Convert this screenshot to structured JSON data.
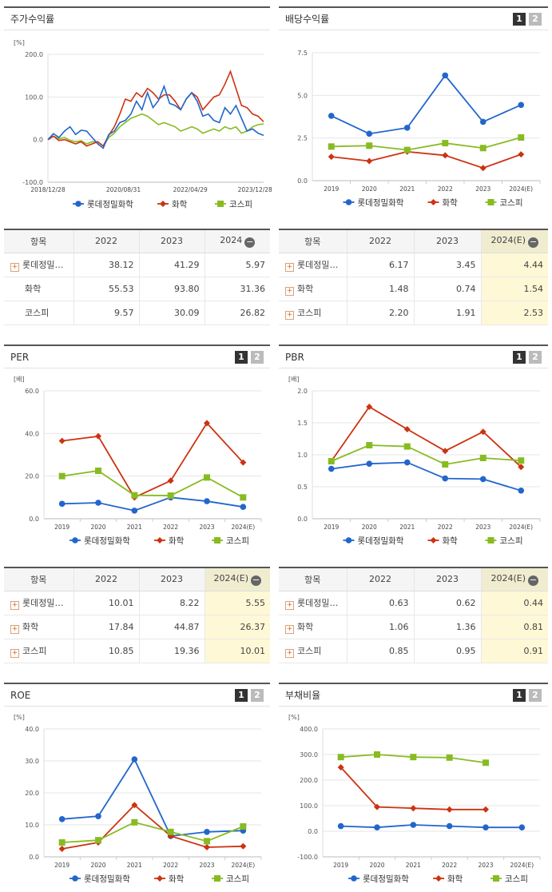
{
  "series_names": [
    "롯데정밀화학",
    "화학",
    "코스피"
  ],
  "colors": {
    "s0": "#2266cc",
    "s1": "#cc3311",
    "s2": "#88bb22"
  },
  "panels": {
    "price": {
      "title": "주가수익률",
      "unit": "[%]"
    },
    "dividend": {
      "title": "배당수익률",
      "unit": "",
      "pages": [
        "1",
        "2"
      ]
    },
    "per": {
      "title": "PER",
      "unit": "[배]",
      "pages": [
        "1",
        "2"
      ]
    },
    "pbr": {
      "title": "PBR",
      "unit": "[배]",
      "pages": [
        "1",
        "2"
      ]
    },
    "roe": {
      "title": "ROE",
      "unit": "[%]",
      "pages": [
        "1",
        "2"
      ]
    },
    "debt": {
      "title": "부채비율",
      "unit": "[%]",
      "pages": [
        "1",
        "2"
      ]
    }
  },
  "chart_data": [
    {
      "id": "price",
      "type": "line",
      "title": "주가수익률",
      "ylabel": "[%]",
      "ylim": [
        -100,
        200
      ],
      "yticks": [
        "200.0",
        "100.0",
        "0.0",
        "-100.0"
      ],
      "xticks": [
        "2018/12/28",
        "2020/08/31",
        "2022/04/29",
        "2023/12/28"
      ],
      "x_range": [
        "2018/12/28",
        "2024/05"
      ],
      "series": [
        {
          "name": "롯데정밀화학",
          "values": [
            0,
            14,
            5,
            20,
            30,
            12,
            22,
            20,
            5,
            -10,
            -20,
            12,
            20,
            40,
            45,
            60,
            90,
            70,
            110,
            75,
            92,
            125,
            85,
            80,
            70,
            95,
            110,
            90,
            55,
            60,
            45,
            40,
            75,
            60,
            80,
            50,
            20,
            25,
            15,
            10
          ]
        },
        {
          "name": "화학",
          "values": [
            0,
            8,
            -2,
            0,
            -5,
            -10,
            -5,
            -15,
            -10,
            -5,
            -15,
            10,
            30,
            60,
            95,
            90,
            110,
            100,
            120,
            110,
            95,
            105,
            105,
            90,
            70,
            95,
            110,
            100,
            70,
            85,
            100,
            105,
            130,
            160,
            120,
            80,
            75,
            60,
            55,
            42
          ]
        },
        {
          "name": "코스피",
          "values": [
            0,
            8,
            2,
            5,
            -2,
            -5,
            -3,
            -10,
            -5,
            -5,
            -15,
            5,
            15,
            30,
            40,
            50,
            55,
            60,
            55,
            45,
            35,
            40,
            35,
            30,
            20,
            25,
            30,
            25,
            15,
            20,
            25,
            20,
            30,
            25,
            30,
            15,
            20,
            30,
            35,
            37
          ]
        }
      ]
    },
    {
      "id": "dividend",
      "type": "line",
      "title": "배당수익률",
      "ylim": [
        0,
        7.5
      ],
      "yticks": [
        "7.5",
        "5.0",
        "2.5",
        "0.0"
      ],
      "categories": [
        "2019",
        "2020",
        "2021",
        "2022",
        "2023",
        "2024(E)"
      ],
      "series": [
        {
          "name": "롯데정밀화학",
          "values": [
            3.8,
            2.75,
            3.1,
            6.17,
            3.45,
            4.44
          ]
        },
        {
          "name": "화학",
          "values": [
            1.4,
            1.15,
            1.7,
            1.48,
            0.74,
            1.54
          ]
        },
        {
          "name": "코스피",
          "values": [
            2.0,
            2.05,
            1.8,
            2.2,
            1.91,
            2.53
          ]
        }
      ]
    },
    {
      "id": "per",
      "type": "line",
      "title": "PER",
      "ylabel": "[배]",
      "ylim": [
        0,
        60
      ],
      "yticks": [
        "60.0",
        "40.0",
        "20.0",
        "0.0"
      ],
      "categories": [
        "2019",
        "2020",
        "2021",
        "2022",
        "2023",
        "2024(E)"
      ],
      "series": [
        {
          "name": "롯데정밀화학",
          "values": [
            7.0,
            7.5,
            3.8,
            10.01,
            8.22,
            5.55
          ]
        },
        {
          "name": "화학",
          "values": [
            36.5,
            38.7,
            10.0,
            17.84,
            44.87,
            26.37
          ]
        },
        {
          "name": "코스피",
          "values": [
            20.0,
            22.5,
            11.0,
            10.85,
            19.36,
            10.01
          ]
        }
      ]
    },
    {
      "id": "pbr",
      "type": "line",
      "title": "PBR",
      "ylabel": "[배]",
      "ylim": [
        0,
        2.0
      ],
      "yticks": [
        "2.0",
        "1.5",
        "1.0",
        "0.5",
        "0.0"
      ],
      "categories": [
        "2019",
        "2020",
        "2021",
        "2022",
        "2023",
        "2024(E)"
      ],
      "series": [
        {
          "name": "롯데정밀화학",
          "values": [
            0.78,
            0.86,
            0.88,
            0.63,
            0.62,
            0.44
          ]
        },
        {
          "name": "화학",
          "values": [
            0.9,
            1.75,
            1.4,
            1.06,
            1.36,
            0.81
          ]
        },
        {
          "name": "코스피",
          "values": [
            0.9,
            1.15,
            1.13,
            0.85,
            0.95,
            0.91
          ]
        }
      ]
    },
    {
      "id": "roe",
      "type": "line",
      "title": "ROE",
      "ylabel": "[%]",
      "ylim": [
        0,
        40
      ],
      "yticks": [
        "40.0",
        "30.0",
        "20.0",
        "10.0",
        "0.0"
      ],
      "categories": [
        "2019",
        "2020",
        "2021",
        "2022",
        "2023",
        "2024(E)"
      ],
      "series": [
        {
          "name": "롯데정밀화학",
          "values": [
            11.8,
            12.7,
            30.5,
            6.5,
            7.8,
            8.2
          ]
        },
        {
          "name": "화학",
          "values": [
            2.5,
            4.5,
            16.2,
            6.5,
            3.0,
            3.3
          ]
        },
        {
          "name": "코스피",
          "values": [
            4.5,
            5.2,
            10.8,
            7.8,
            4.9,
            9.5
          ]
        }
      ]
    },
    {
      "id": "debt",
      "type": "line",
      "title": "부채비율",
      "ylabel": "[%]",
      "ylim": [
        -100,
        400
      ],
      "yticks": [
        "400.0",
        "300.0",
        "200.0",
        "100.0",
        "0.0",
        "-100.0"
      ],
      "categories": [
        "2019",
        "2020",
        "2021",
        "2022",
        "2023",
        "2024(E)"
      ],
      "series": [
        {
          "name": "롯데정밀화학",
          "values": [
            20,
            15,
            25,
            20,
            15,
            15
          ]
        },
        {
          "name": "화학",
          "values": [
            250,
            95,
            90,
            85,
            85,
            null
          ]
        },
        {
          "name": "코스피",
          "values": [
            290,
            300,
            290,
            288,
            268,
            null
          ]
        }
      ]
    }
  ],
  "tables": {
    "price": {
      "header": [
        "항목",
        "2022",
        "2023",
        "2024"
      ],
      "rows": [
        {
          "name": "롯데정밀…",
          "vals": [
            "38.12",
            "41.29",
            "5.97"
          ],
          "plus": true
        },
        {
          "name": "화학",
          "vals": [
            "55.53",
            "93.80",
            "31.36"
          ],
          "plus": false
        },
        {
          "name": "코스피",
          "vals": [
            "9.57",
            "30.09",
            "26.82"
          ],
          "plus": false
        }
      ]
    },
    "dividend": {
      "header": [
        "항목",
        "2022",
        "2023",
        "2024(E)"
      ],
      "rows": [
        {
          "name": "롯데정밀…",
          "vals": [
            "6.17",
            "3.45",
            "4.44"
          ],
          "plus": true
        },
        {
          "name": "화학",
          "vals": [
            "1.48",
            "0.74",
            "1.54"
          ],
          "plus": true
        },
        {
          "name": "코스피",
          "vals": [
            "2.20",
            "1.91",
            "2.53"
          ],
          "plus": true
        }
      ]
    },
    "per": {
      "header": [
        "항목",
        "2022",
        "2023",
        "2024(E)"
      ],
      "rows": [
        {
          "name": "롯데정밀…",
          "vals": [
            "10.01",
            "8.22",
            "5.55"
          ],
          "plus": true
        },
        {
          "name": "화학",
          "vals": [
            "17.84",
            "44.87",
            "26.37"
          ],
          "plus": true
        },
        {
          "name": "코스피",
          "vals": [
            "10.85",
            "19.36",
            "10.01"
          ],
          "plus": true
        }
      ]
    },
    "pbr": {
      "header": [
        "항목",
        "2022",
        "2023",
        "2024(E)"
      ],
      "rows": [
        {
          "name": "롯데정밀…",
          "vals": [
            "0.63",
            "0.62",
            "0.44"
          ],
          "plus": true
        },
        {
          "name": "화학",
          "vals": [
            "1.06",
            "1.36",
            "0.81"
          ],
          "plus": true
        },
        {
          "name": "코스피",
          "vals": [
            "0.85",
            "0.95",
            "0.91"
          ],
          "plus": true
        }
      ]
    }
  }
}
